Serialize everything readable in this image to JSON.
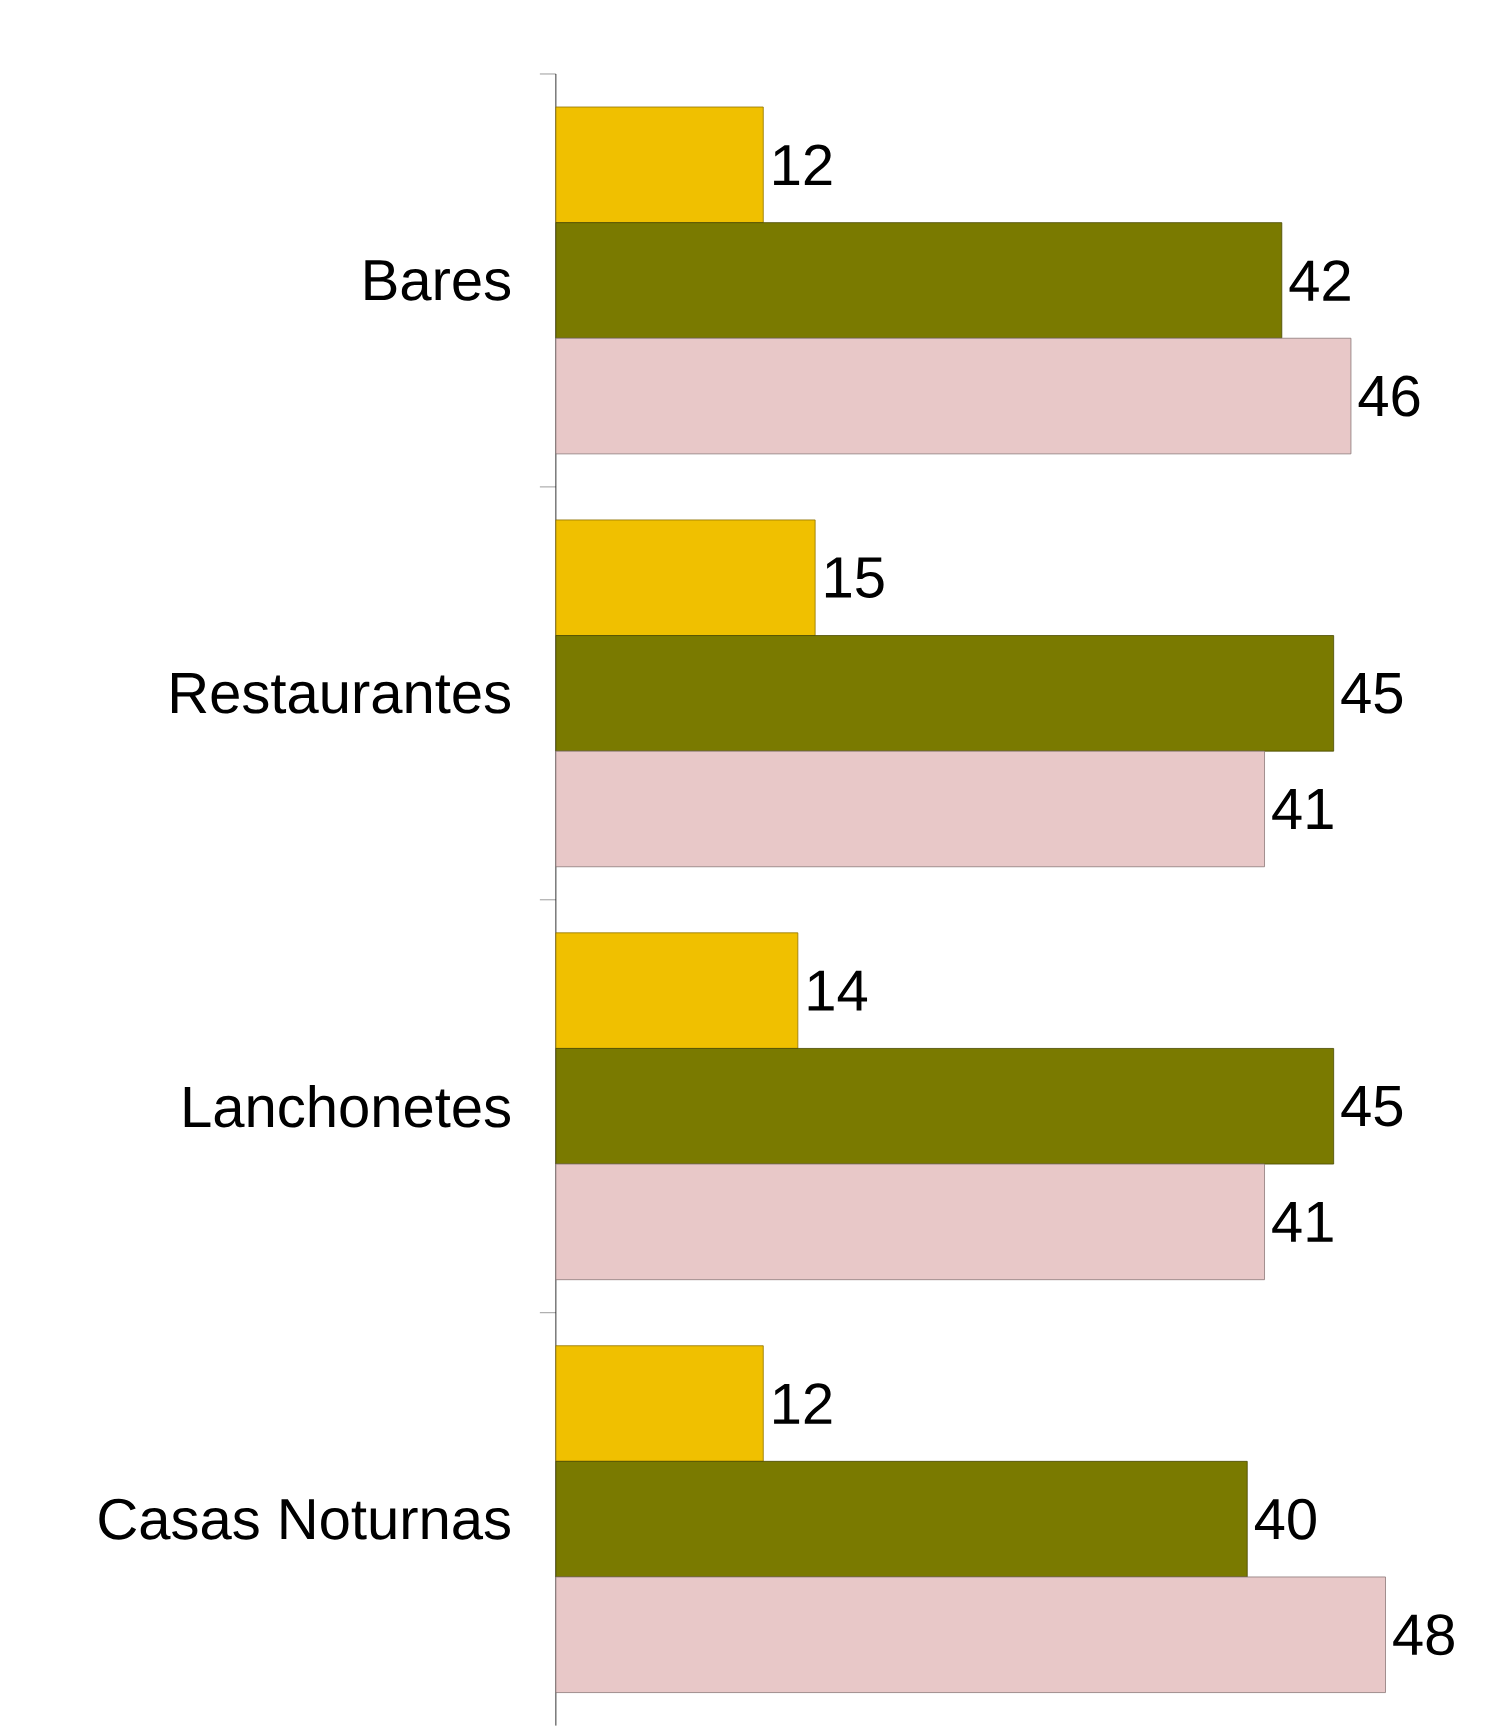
{
  "chart_data": {
    "type": "bar",
    "orientation": "horizontal",
    "categories": [
      "Bares",
      "Restaurantes",
      "Lanchonetes",
      "Casas Noturnas"
    ],
    "series": [
      {
        "color": "#f0c000",
        "values": [
          12,
          15,
          14,
          12
        ]
      },
      {
        "color": "#7a7a00",
        "values": [
          42,
          45,
          45,
          40
        ]
      },
      {
        "color": "#e8c8c8",
        "values": [
          46,
          41,
          41,
          48
        ]
      }
    ],
    "data_labels": true
  }
}
